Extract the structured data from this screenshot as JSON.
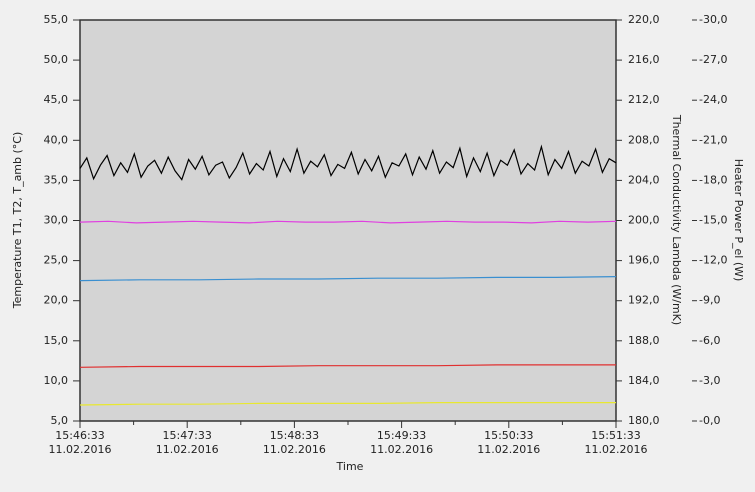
{
  "chart_data": {
    "type": "line",
    "x_title": "Time",
    "y_title": "Temperature  T1, T2, T_amb    (°C)",
    "y2_title": "Thermal Conductivity  Lambda   (W/mK)",
    "y3_title": "Heater Power   P_el    (W)",
    "xticks": [
      {
        "time": "15:46:33",
        "date": "11.02.2016"
      },
      {
        "time": "15:47:33",
        "date": "11.02.2016"
      },
      {
        "time": "15:48:33",
        "date": "11.02.2016"
      },
      {
        "time": "15:49:33",
        "date": "11.02.2016"
      },
      {
        "time": "15:50:33",
        "date": "11.02.2016"
      },
      {
        "time": "15:51:33",
        "date": "11.02.2016"
      }
    ],
    "ylim": [
      5,
      55
    ],
    "yticks": [
      {
        "value": 5,
        "label": "5,0"
      },
      {
        "value": 10,
        "label": "10,0"
      },
      {
        "value": 15,
        "label": "15,0"
      },
      {
        "value": 20,
        "label": "20,0"
      },
      {
        "value": 25,
        "label": "25,0"
      },
      {
        "value": 30,
        "label": "30,0"
      },
      {
        "value": 35,
        "label": "35,0"
      },
      {
        "value": 40,
        "label": "40,0"
      },
      {
        "value": 45,
        "label": "45,0"
      },
      {
        "value": 50,
        "label": "50,0"
      },
      {
        "value": 55,
        "label": "55,0"
      }
    ],
    "y2lim": [
      180,
      220
    ],
    "y2ticks": [
      {
        "value": 180,
        "label": "180,0"
      },
      {
        "value": 184,
        "label": "184,0"
      },
      {
        "value": 188,
        "label": "188,0"
      },
      {
        "value": 192,
        "label": "192,0"
      },
      {
        "value": 196,
        "label": "196,0"
      },
      {
        "value": 200,
        "label": "200,0"
      },
      {
        "value": 204,
        "label": "204,0"
      },
      {
        "value": 208,
        "label": "208,0"
      },
      {
        "value": 212,
        "label": "212,0"
      },
      {
        "value": 216,
        "label": "216,0"
      },
      {
        "value": 220,
        "label": "220,0"
      }
    ],
    "y3lim": [
      0,
      -30
    ],
    "y3ticks": [
      {
        "value": 0,
        "label": "-0,0"
      },
      {
        "value": -3,
        "label": "-3,0"
      },
      {
        "value": -6,
        "label": "-6,0"
      },
      {
        "value": -9,
        "label": "-9,0"
      },
      {
        "value": -12,
        "label": "-12,0"
      },
      {
        "value": -15,
        "label": "-15,0"
      },
      {
        "value": -18,
        "label": "-18,0"
      },
      {
        "value": -21,
        "label": "-21,0"
      },
      {
        "value": -24,
        "label": "-24,0"
      },
      {
        "value": -27,
        "label": "-27,0"
      },
      {
        "value": -30,
        "label": "-30,0"
      }
    ],
    "series": [
      {
        "color": "#000000",
        "values": [
          36.5,
          37.8,
          35.2,
          36.9,
          38.1,
          35.6,
          37.2,
          36.0,
          38.3,
          35.4,
          36.8,
          37.5,
          35.9,
          37.9,
          36.2,
          35.1,
          37.6,
          36.4,
          38.0,
          35.7,
          36.9,
          37.3,
          35.3,
          36.6,
          38.4,
          35.8,
          37.1,
          36.3,
          38.6,
          35.5,
          37.7,
          36.1,
          38.9,
          35.9,
          37.4,
          36.7,
          38.2,
          35.6,
          37.0,
          36.5,
          38.5,
          35.8,
          37.6,
          36.2,
          38.0,
          35.4,
          37.2,
          36.8,
          38.3,
          35.7,
          37.9,
          36.4,
          38.7,
          35.9,
          37.3,
          36.6,
          39.0,
          35.5,
          37.8,
          36.1,
          38.4,
          35.6,
          37.5,
          36.9,
          38.8,
          35.8,
          37.1,
          36.3,
          39.2,
          35.7,
          37.6,
          36.5,
          38.6,
          35.9,
          37.4,
          36.8,
          38.9,
          36.0,
          37.7,
          37.2
        ]
      },
      {
        "color": "#e040e0",
        "values": [
          29.8,
          29.9,
          29.7,
          29.8,
          29.9,
          29.8,
          29.7,
          29.9,
          29.8,
          29.8,
          29.9,
          29.7,
          29.8,
          29.9,
          29.8,
          29.8,
          29.7,
          29.9,
          29.8,
          29.9
        ]
      },
      {
        "color": "#3a8fd0",
        "values": [
          22.5,
          22.6,
          22.6,
          22.7,
          22.7,
          22.8,
          22.8,
          22.9,
          22.9,
          23.0
        ]
      },
      {
        "color": "#e03030",
        "values": [
          11.7,
          11.8,
          11.8,
          11.8,
          11.9,
          11.9,
          11.9,
          12.0,
          12.0,
          12.0
        ]
      },
      {
        "color": "#e8e830",
        "values": [
          7.0,
          7.1,
          7.1,
          7.2,
          7.2,
          7.2,
          7.3,
          7.3,
          7.3,
          7.3
        ]
      }
    ]
  }
}
